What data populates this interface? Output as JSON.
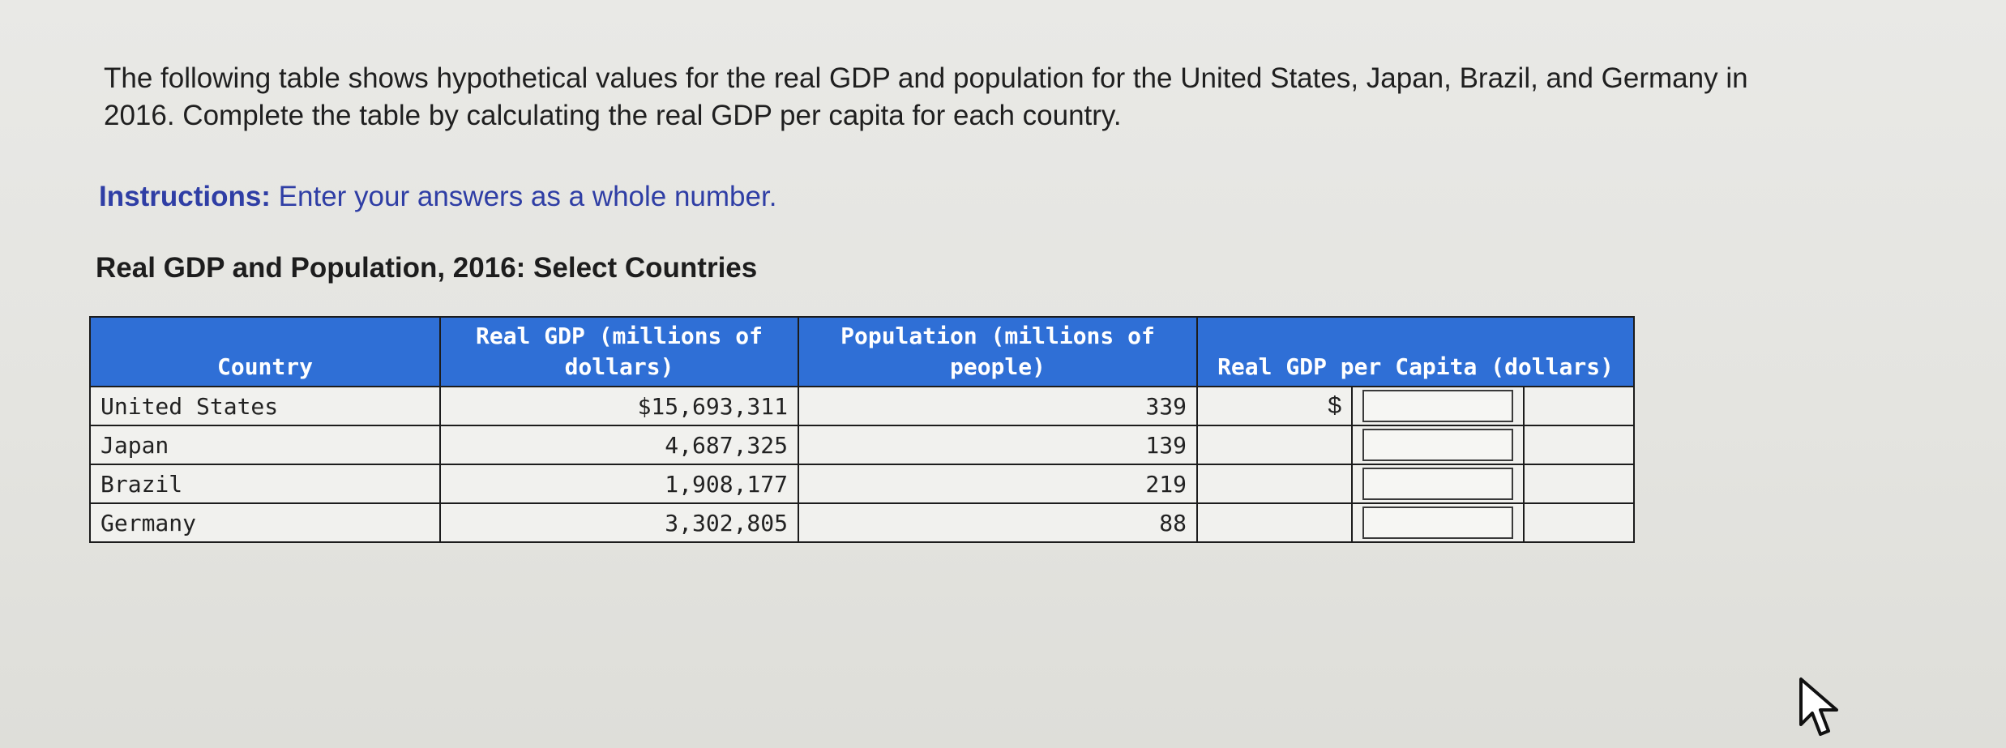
{
  "question": {
    "text_line1": "The following table shows hypothetical values for the real GDP and population for the United States, Japan, Brazil, and Germany in",
    "text_line2": "2016. Complete the table by calculating the real GDP per capita for each country."
  },
  "instructions": {
    "label": "Instructions:",
    "text": " Enter your answers as a whole number."
  },
  "table": {
    "title": "Real GDP and Population, 2016: Select Countries",
    "headers": {
      "country": "Country",
      "gdp": "Real GDP (millions of dollars)",
      "population": "Population (millions of people)",
      "per_capita": "Real GDP per Capita (dollars)"
    },
    "rows": [
      {
        "country": "United States",
        "gdp": "$15,693,311",
        "population": "339",
        "currency": "$",
        "answer": ""
      },
      {
        "country": "Japan",
        "gdp": "4,687,325",
        "population": "139",
        "currency": "",
        "answer": ""
      },
      {
        "country": "Brazil",
        "gdp": "1,908,177",
        "population": "219",
        "currency": "",
        "answer": ""
      },
      {
        "country": "Germany",
        "gdp": "3,302,805",
        "population": "88",
        "currency": "",
        "answer": ""
      }
    ]
  },
  "colors": {
    "header_blue": "#2f6fd6",
    "instructions_blue": "#2f3ea5"
  },
  "icons": {
    "cursor": "mouse-pointer-icon"
  }
}
